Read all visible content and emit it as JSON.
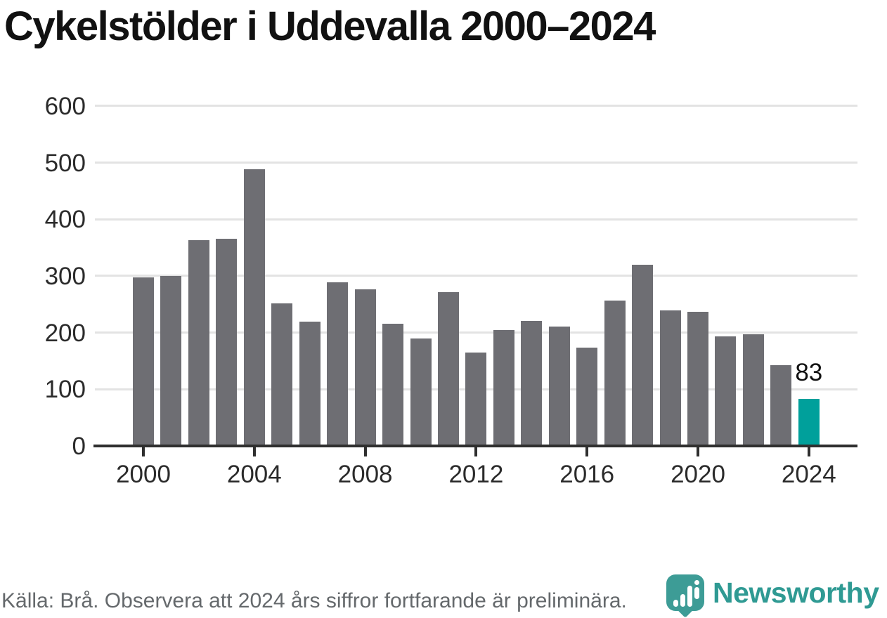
{
  "title": "Cykelstölder i Uddevalla 2000–2024",
  "chart_data": {
    "type": "bar",
    "categories": [
      2000,
      2001,
      2002,
      2003,
      2004,
      2005,
      2006,
      2007,
      2008,
      2009,
      2010,
      2011,
      2012,
      2013,
      2014,
      2015,
      2016,
      2017,
      2018,
      2019,
      2020,
      2021,
      2022,
      2023,
      2024
    ],
    "values": [
      298,
      300,
      363,
      366,
      489,
      252,
      220,
      289,
      277,
      216,
      190,
      271,
      165,
      204,
      221,
      211,
      174,
      256,
      320,
      239,
      237,
      194,
      197,
      143,
      83
    ],
    "title": "Cykelstölder i Uddevalla 2000–2024",
    "xlabel": "",
    "ylabel": "",
    "ylim": [
      0,
      600
    ],
    "yticks": [
      0,
      100,
      200,
      300,
      400,
      500,
      600
    ],
    "xticks": [
      2000,
      2004,
      2008,
      2012,
      2016,
      2020,
      2024
    ],
    "grid": "horizontal",
    "legend": "none",
    "bar_color": "#6e6e73",
    "highlight_year": 2024,
    "highlight_color": "#00a09b",
    "annotation": {
      "year": 2024,
      "label": "83"
    }
  },
  "footer": {
    "source_note": "Källa: Brå. Observera att 2024 års siffror fortfarande är preliminära."
  },
  "logo": {
    "brand": "Newsworthy",
    "icon": "newsworthy-pin-barchart-icon",
    "brand_color": "#2f9a93"
  }
}
